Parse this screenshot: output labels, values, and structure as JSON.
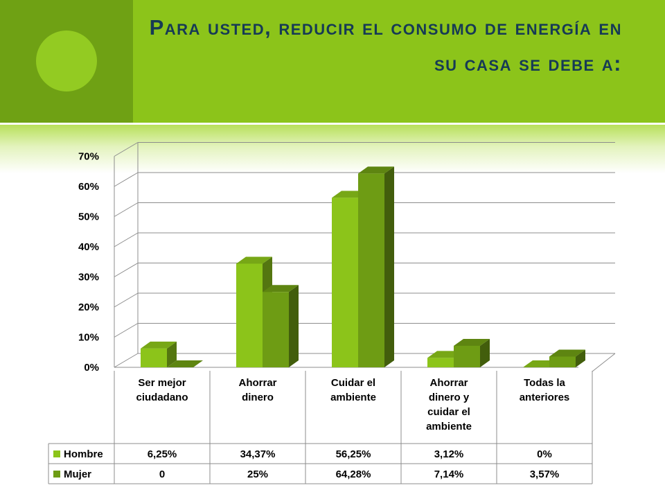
{
  "slide": {
    "title": "Para usted, reducir el consumo de energía en su casa se debe a:"
  },
  "colors": {
    "banner": "#8cc41a",
    "banner_dark": "#6fa114",
    "title": "#163a55",
    "hombre": "#8cc41a",
    "mujer": "#6e9c14"
  },
  "chart_data": {
    "type": "bar",
    "three_d": true,
    "categories": [
      [
        "Ser mejor",
        "ciudadano"
      ],
      [
        "Ahorrar",
        "dinero"
      ],
      [
        "Cuidar el",
        "ambiente"
      ],
      [
        "Ahorrar",
        "dinero y",
        "cuidar el",
        "ambiente"
      ],
      [
        "Todas la",
        "anteriores"
      ]
    ],
    "series": [
      {
        "name": "Hombre",
        "values": [
          6.25,
          34.37,
          56.25,
          3.12,
          0
        ],
        "labels": [
          "6,25%",
          "34,37%",
          "56,25%",
          "3,12%",
          "0%"
        ]
      },
      {
        "name": "Mujer",
        "values": [
          0,
          25,
          64.28,
          7.14,
          3.57
        ],
        "labels": [
          "0",
          "25%",
          "64,28%",
          "7,14%",
          "3,57%"
        ]
      }
    ],
    "y_ticks": [
      "0%",
      "10%",
      "20%",
      "30%",
      "40%",
      "50%",
      "60%",
      "70%"
    ],
    "ylim": [
      0,
      70
    ],
    "grid": true,
    "legend": "data-table"
  }
}
